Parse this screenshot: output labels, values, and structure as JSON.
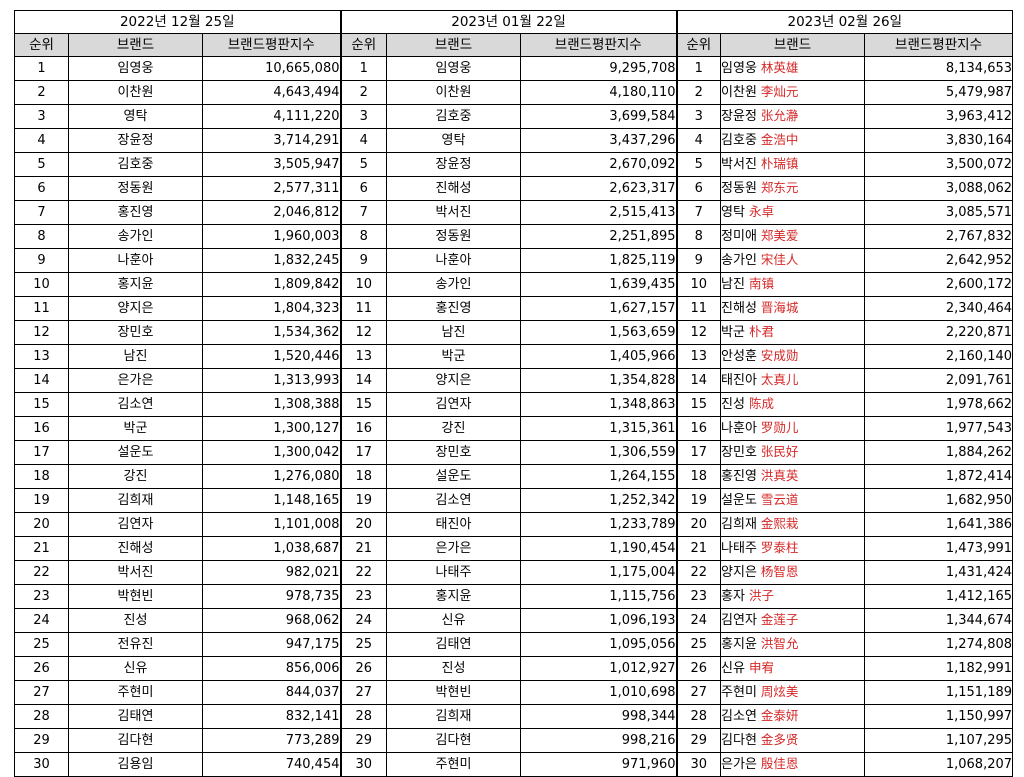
{
  "dates": [
    "2022년 12월 25일",
    "2023년 01월 22일",
    "2023년 02월 26일"
  ],
  "headers": {
    "rank": "순위",
    "brand": "브랜드",
    "score": "브랜드평판지수"
  },
  "groups": [
    {
      "rows": [
        {
          "rank": "1",
          "name": "임영웅",
          "score": "10,665,080"
        },
        {
          "rank": "2",
          "name": "이찬원",
          "score": "4,643,494"
        },
        {
          "rank": "3",
          "name": "영탁",
          "score": "4,111,220"
        },
        {
          "rank": "4",
          "name": "장윤정",
          "score": "3,714,291"
        },
        {
          "rank": "5",
          "name": "김호중",
          "score": "3,505,947"
        },
        {
          "rank": "6",
          "name": "정동원",
          "score": "2,577,311"
        },
        {
          "rank": "7",
          "name": "홍진영",
          "score": "2,046,812"
        },
        {
          "rank": "8",
          "name": "송가인",
          "score": "1,960,003"
        },
        {
          "rank": "9",
          "name": "나훈아",
          "score": "1,832,245"
        },
        {
          "rank": "10",
          "name": "홍지윤",
          "score": "1,809,842"
        },
        {
          "rank": "11",
          "name": "양지은",
          "score": "1,804,323"
        },
        {
          "rank": "12",
          "name": "장민호",
          "score": "1,534,362"
        },
        {
          "rank": "13",
          "name": "남진",
          "score": "1,520,446"
        },
        {
          "rank": "14",
          "name": "은가은",
          "score": "1,313,993"
        },
        {
          "rank": "15",
          "name": "김소연",
          "score": "1,308,388"
        },
        {
          "rank": "16",
          "name": "박군",
          "score": "1,300,127"
        },
        {
          "rank": "17",
          "name": "설운도",
          "score": "1,300,042"
        },
        {
          "rank": "18",
          "name": "강진",
          "score": "1,276,080"
        },
        {
          "rank": "19",
          "name": "김희재",
          "score": "1,148,165"
        },
        {
          "rank": "20",
          "name": "김연자",
          "score": "1,101,008"
        },
        {
          "rank": "21",
          "name": "진해성",
          "score": "1,038,687"
        },
        {
          "rank": "22",
          "name": "박서진",
          "score": "982,021"
        },
        {
          "rank": "23",
          "name": "박현빈",
          "score": "978,735"
        },
        {
          "rank": "24",
          "name": "진성",
          "score": "968,062"
        },
        {
          "rank": "25",
          "name": "전유진",
          "score": "947,175"
        },
        {
          "rank": "26",
          "name": "신유",
          "score": "856,006"
        },
        {
          "rank": "27",
          "name": "주현미",
          "score": "844,037"
        },
        {
          "rank": "28",
          "name": "김태연",
          "score": "832,141"
        },
        {
          "rank": "29",
          "name": "김다현",
          "score": "773,289"
        },
        {
          "rank": "30",
          "name": "김용임",
          "score": "740,454"
        }
      ]
    },
    {
      "rows": [
        {
          "rank": "1",
          "name": "임영웅",
          "score": "9,295,708"
        },
        {
          "rank": "2",
          "name": "이찬원",
          "score": "4,180,110"
        },
        {
          "rank": "3",
          "name": "김호중",
          "score": "3,699,584"
        },
        {
          "rank": "4",
          "name": "영탁",
          "score": "3,437,296"
        },
        {
          "rank": "5",
          "name": "장윤정",
          "score": "2,670,092"
        },
        {
          "rank": "6",
          "name": "진해성",
          "score": "2,623,317"
        },
        {
          "rank": "7",
          "name": "박서진",
          "score": "2,515,413"
        },
        {
          "rank": "8",
          "name": "정동원",
          "score": "2,251,895"
        },
        {
          "rank": "9",
          "name": "나훈아",
          "score": "1,825,119"
        },
        {
          "rank": "10",
          "name": "송가인",
          "score": "1,639,435"
        },
        {
          "rank": "11",
          "name": "홍진영",
          "score": "1,627,157"
        },
        {
          "rank": "12",
          "name": "남진",
          "score": "1,563,659"
        },
        {
          "rank": "13",
          "name": "박군",
          "score": "1,405,966"
        },
        {
          "rank": "14",
          "name": "양지은",
          "score": "1,354,828"
        },
        {
          "rank": "15",
          "name": "김연자",
          "score": "1,348,863"
        },
        {
          "rank": "16",
          "name": "강진",
          "score": "1,315,361"
        },
        {
          "rank": "17",
          "name": "장민호",
          "score": "1,306,559"
        },
        {
          "rank": "18",
          "name": "설운도",
          "score": "1,264,155"
        },
        {
          "rank": "19",
          "name": "김소연",
          "score": "1,252,342"
        },
        {
          "rank": "20",
          "name": "태진아",
          "score": "1,233,789"
        },
        {
          "rank": "21",
          "name": "은가은",
          "score": "1,190,454"
        },
        {
          "rank": "22",
          "name": "나태주",
          "score": "1,175,004"
        },
        {
          "rank": "23",
          "name": "홍지윤",
          "score": "1,115,756"
        },
        {
          "rank": "24",
          "name": "신유",
          "score": "1,096,193"
        },
        {
          "rank": "25",
          "name": "김태연",
          "score": "1,095,056"
        },
        {
          "rank": "26",
          "name": "진성",
          "score": "1,012,927"
        },
        {
          "rank": "27",
          "name": "박현빈",
          "score": "1,010,698"
        },
        {
          "rank": "28",
          "name": "김희재",
          "score": "998,344"
        },
        {
          "rank": "29",
          "name": "김다현",
          "score": "998,216"
        },
        {
          "rank": "30",
          "name": "주현미",
          "score": "971,960"
        }
      ]
    },
    {
      "rows": [
        {
          "rank": "1",
          "name": "임영웅",
          "cn": "林英雄",
          "score": "8,134,653"
        },
        {
          "rank": "2",
          "name": "이찬원",
          "cn": "李灿元",
          "score": "5,479,987"
        },
        {
          "rank": "3",
          "name": "장윤정",
          "cn": "张允瀞",
          "score": "3,963,412"
        },
        {
          "rank": "4",
          "name": "김호중",
          "cn": "金浩中",
          "score": "3,830,164"
        },
        {
          "rank": "5",
          "name": "박서진",
          "cn": "朴瑞镇",
          "score": "3,500,072"
        },
        {
          "rank": "6",
          "name": "정동원",
          "cn": "郑东元",
          "score": "3,088,062"
        },
        {
          "rank": "7",
          "name": "영탁",
          "cn": "永卓",
          "score": "3,085,571"
        },
        {
          "rank": "8",
          "name": "정미애",
          "cn": "郑美爱",
          "score": "2,767,832"
        },
        {
          "rank": "9",
          "name": "송가인",
          "cn": "宋佳人",
          "score": "2,642,952"
        },
        {
          "rank": "10",
          "name": "남진",
          "cn": "南镇",
          "score": "2,600,172"
        },
        {
          "rank": "11",
          "name": "진해성",
          "cn": "晋海城",
          "score": "2,340,464"
        },
        {
          "rank": "12",
          "name": "박군",
          "cn": "朴君",
          "score": "2,220,871"
        },
        {
          "rank": "13",
          "name": "안성훈",
          "cn": "安成勋",
          "score": "2,160,140"
        },
        {
          "rank": "14",
          "name": "태진아",
          "cn": "太真儿",
          "score": "2,091,761"
        },
        {
          "rank": "15",
          "name": "진성",
          "cn": "陈成",
          "score": "1,978,662"
        },
        {
          "rank": "16",
          "name": "나훈아",
          "cn": "罗勋儿",
          "score": "1,977,543"
        },
        {
          "rank": "17",
          "name": "장민호",
          "cn": "张民好",
          "score": "1,884,262"
        },
        {
          "rank": "18",
          "name": "홍진영",
          "cn": "洪真英",
          "score": "1,872,414"
        },
        {
          "rank": "19",
          "name": "설운도",
          "cn": "雪云道",
          "score": "1,682,950"
        },
        {
          "rank": "20",
          "name": "김희재",
          "cn": "金熙栽",
          "score": "1,641,386"
        },
        {
          "rank": "21",
          "name": "나태주",
          "cn": "罗泰柱",
          "score": "1,473,991"
        },
        {
          "rank": "22",
          "name": "양지은",
          "cn": "杨智恩",
          "score": "1,431,424"
        },
        {
          "rank": "23",
          "name": "홍자",
          "cn": "洪子",
          "score": "1,412,165"
        },
        {
          "rank": "24",
          "name": "김연자",
          "cn": "金莲子",
          "score": "1,344,674"
        },
        {
          "rank": "25",
          "name": "홍지윤",
          "cn": "洪智允",
          "score": "1,274,808"
        },
        {
          "rank": "26",
          "name": "신유",
          "cn": "申宥",
          "score": "1,182,991"
        },
        {
          "rank": "27",
          "name": "주현미",
          "cn": "周炫美",
          "score": "1,151,189"
        },
        {
          "rank": "28",
          "name": "김소연",
          "cn": "金泰妍",
          "score": "1,150,997"
        },
        {
          "rank": "29",
          "name": "김다현",
          "cn": "金多贤",
          "score": "1,107,295"
        },
        {
          "rank": "30",
          "name": "은가은",
          "cn": "殷佳恩",
          "score": "1,068,207"
        }
      ]
    }
  ],
  "colors": {
    "header_bg": "#d9d9d9",
    "chinese_text": "#d62828",
    "border": "#000000"
  }
}
